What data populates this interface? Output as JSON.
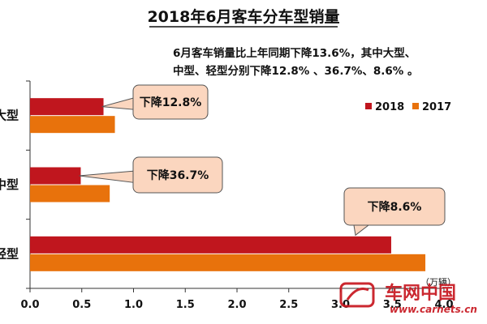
{
  "title": "2018年6月客车分车型销量",
  "subtitle_lines": [
    "6月客车销量比上年同期下降13.6%，其中大型、",
    "中型、轻型分别下降12.8% 、36.7%、8.6% 。"
  ],
  "unit_label": "（万辆）",
  "watermark": {
    "name": "车网中国",
    "url": "www.carnets.cn"
  },
  "colors": {
    "s2018": "#c0161e",
    "s2017": "#e8720c",
    "callout_fill": "#fbd6bf",
    "callout_stroke": "#555555",
    "axis": "#333333"
  },
  "chart_data": {
    "type": "bar",
    "orientation": "horizontal",
    "title": "2018年6月客车分车型销量",
    "categories": [
      "大型",
      "中型",
      "轻型"
    ],
    "series": [
      {
        "name": "2018",
        "values": [
          0.71,
          0.49,
          3.49
        ]
      },
      {
        "name": "2017",
        "values": [
          0.82,
          0.77,
          3.82
        ]
      }
    ],
    "xlim": [
      0,
      4.0
    ],
    "xticks": [
      "0.0",
      "0.5",
      "1.0",
      "1.5",
      "2.0",
      "2.5",
      "3.0",
      "3.5",
      "4.0"
    ],
    "xlabel": "（万辆）",
    "ylabel": "",
    "legend_position": "right",
    "grid": false,
    "annotations": [
      "下降12.8%",
      "下降36.7%",
      "下降8.6%"
    ]
  }
}
